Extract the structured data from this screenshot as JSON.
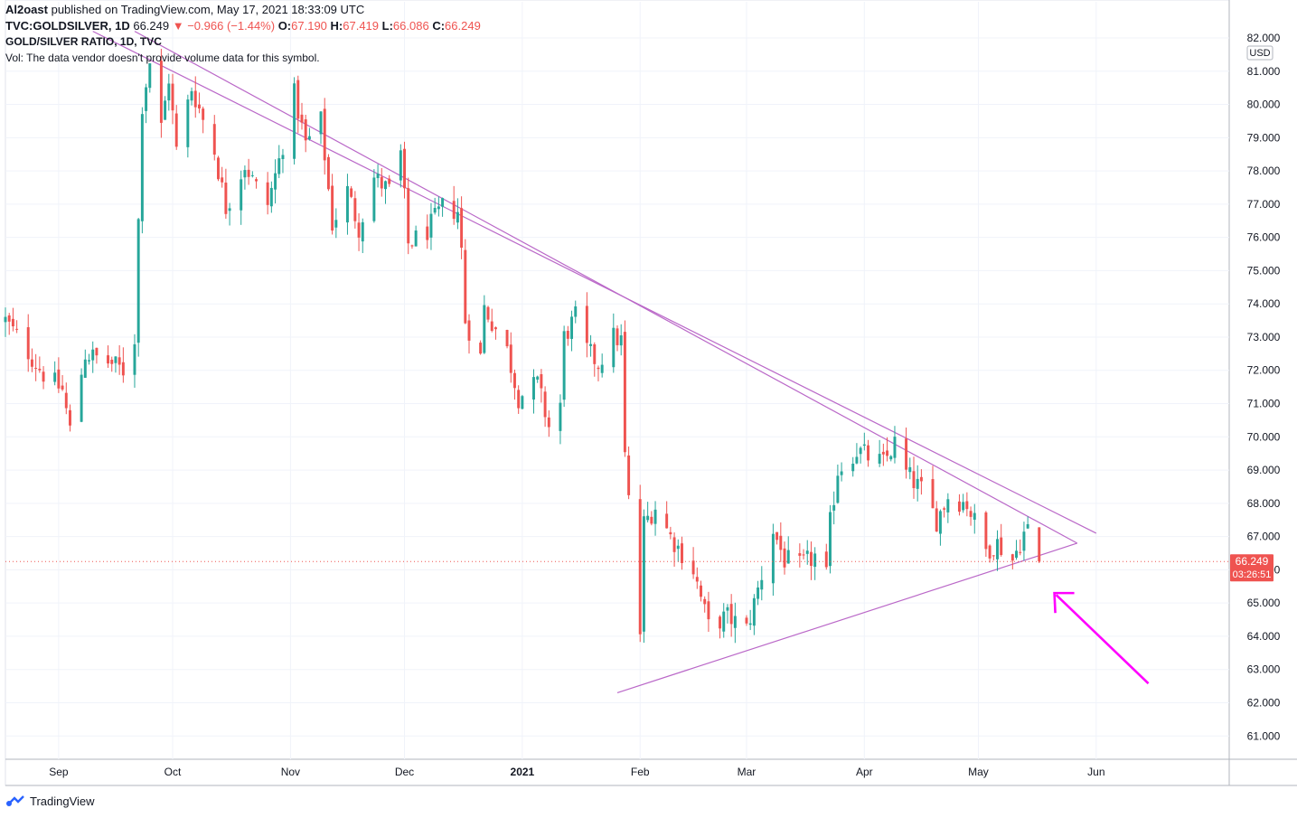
{
  "header": {
    "publisher": "Al2oast",
    "published_text": "published on TradingView.com, May 17, 2021 18:33:09 UTC",
    "symbol": "TVC:GOLDSILVER, 1D",
    "last": "66.249",
    "change": "▼ −0.966 (−1.44%)",
    "o_label": "O:",
    "o_value": "67.190",
    "h_label": "H:",
    "h_value": "67.419",
    "l_label": "L:",
    "l_value": "66.086",
    "c_label": "C:",
    "c_value": "66.249"
  },
  "chart_data": {
    "type": "candlestick",
    "title": "GOLD/SILVER RATIO, 1D, TVC",
    "note": "Vol: The data vendor doesn't provide volume data for this symbol.",
    "currency": "USD",
    "x_start": "2020-08-18",
    "x_end": "2021-07-06",
    "ylim": [
      60.3,
      82.0
    ],
    "y_ticks": [
      "82.000",
      "81.000",
      "80.000",
      "79.000",
      "78.000",
      "77.000",
      "76.000",
      "75.000",
      "74.000",
      "73.000",
      "72.000",
      "71.000",
      "70.000",
      "69.000",
      "68.000",
      "67.000",
      "66.000",
      "65.000",
      "64.000",
      "63.000",
      "62.000",
      "61.000"
    ],
    "x_ticks": [
      {
        "label": "Sep",
        "date": "2020-09-01",
        "bold": false
      },
      {
        "label": "Oct",
        "date": "2020-10-01",
        "bold": false
      },
      {
        "label": "Nov",
        "date": "2020-11-01",
        "bold": false
      },
      {
        "label": "Dec",
        "date": "2020-12-01",
        "bold": false
      },
      {
        "label": "2021",
        "date": "2021-01-01",
        "bold": true
      },
      {
        "label": "Feb",
        "date": "2021-02-01",
        "bold": false
      },
      {
        "label": "Mar",
        "date": "2021-03-01",
        "bold": false
      },
      {
        "label": "Apr",
        "date": "2021-04-01",
        "bold": false
      },
      {
        "label": "May",
        "date": "2021-05-01",
        "bold": false
      },
      {
        "label": "Jun",
        "date": "2021-06-01",
        "bold": false
      }
    ],
    "last_price": "66.249",
    "countdown": "03:26:51",
    "colors": {
      "up": "#26a69a",
      "down": "#ef5350",
      "trend": "#ba68c8",
      "arrow": "#ff00ff",
      "grid": "#f0f3fa"
    },
    "anchors": [
      {
        "date": "2020-08-18",
        "close": 73.5
      },
      {
        "date": "2020-08-28",
        "close": 71.9
      },
      {
        "date": "2020-09-02",
        "close": 71.4
      },
      {
        "date": "2020-09-04",
        "close": 70.2
      },
      {
        "date": "2020-09-08",
        "close": 72.5
      },
      {
        "date": "2020-09-15",
        "close": 72.2
      },
      {
        "date": "2020-09-18",
        "close": 72.0
      },
      {
        "date": "2020-09-21",
        "close": 73.0
      },
      {
        "date": "2020-09-23",
        "close": 80.0
      },
      {
        "date": "2020-09-25",
        "close": 81.3
      },
      {
        "date": "2020-09-28",
        "close": 79.3
      },
      {
        "date": "2020-09-30",
        "close": 80.8
      },
      {
        "date": "2020-10-02",
        "close": 78.6
      },
      {
        "date": "2020-10-06",
        "close": 80.5
      },
      {
        "date": "2020-10-12",
        "close": 78.6
      },
      {
        "date": "2020-10-15",
        "close": 76.9
      },
      {
        "date": "2020-10-20",
        "close": 78.2
      },
      {
        "date": "2020-10-23",
        "close": 77.5
      },
      {
        "date": "2020-10-26",
        "close": 77.0
      },
      {
        "date": "2020-10-29",
        "close": 78.3
      },
      {
        "date": "2020-11-02",
        "close": 80.3
      },
      {
        "date": "2020-11-05",
        "close": 78.8
      },
      {
        "date": "2020-11-09",
        "close": 79.5
      },
      {
        "date": "2020-11-12",
        "close": 76.4
      },
      {
        "date": "2020-11-16",
        "close": 77.4
      },
      {
        "date": "2020-11-19",
        "close": 76.3
      },
      {
        "date": "2020-11-23",
        "close": 77.8
      },
      {
        "date": "2020-11-27",
        "close": 77.4
      },
      {
        "date": "2020-11-30",
        "close": 78.5
      },
      {
        "date": "2020-12-02",
        "close": 75.8
      },
      {
        "date": "2020-12-07",
        "close": 76.2
      },
      {
        "date": "2020-12-11",
        "close": 76.9
      },
      {
        "date": "2020-12-15",
        "close": 76.8
      },
      {
        "date": "2020-12-16",
        "close": 75.6
      },
      {
        "date": "2020-12-17",
        "close": 73.5
      },
      {
        "date": "2020-12-21",
        "close": 72.4
      },
      {
        "date": "2020-12-22",
        "close": 73.9
      },
      {
        "date": "2020-12-28",
        "close": 72.6
      },
      {
        "date": "2020-12-31",
        "close": 71.2
      },
      {
        "date": "2021-01-05",
        "close": 71.6
      },
      {
        "date": "2021-01-08",
        "close": 70.3
      },
      {
        "date": "2021-01-11",
        "close": 71.0
      },
      {
        "date": "2021-01-12",
        "close": 73.0
      },
      {
        "date": "2021-01-15",
        "close": 73.6
      },
      {
        "date": "2021-01-18",
        "close": 72.6
      },
      {
        "date": "2021-01-21",
        "close": 72.2
      },
      {
        "date": "2021-01-25",
        "close": 73.0
      },
      {
        "date": "2021-01-27",
        "close": 72.9
      },
      {
        "date": "2021-01-28",
        "close": 69.4
      },
      {
        "date": "2021-02-01",
        "close": 64.1
      },
      {
        "date": "2021-02-02",
        "close": 67.4
      },
      {
        "date": "2021-02-05",
        "close": 67.9
      },
      {
        "date": "2021-02-09",
        "close": 67.0
      },
      {
        "date": "2021-02-15",
        "close": 66.0
      },
      {
        "date": "2021-02-19",
        "close": 64.3
      },
      {
        "date": "2021-02-24",
        "close": 64.6
      },
      {
        "date": "2021-03-01",
        "close": 64.2
      },
      {
        "date": "2021-03-04",
        "close": 65.4
      },
      {
        "date": "2021-03-08",
        "close": 67.2
      },
      {
        "date": "2021-03-11",
        "close": 66.3
      },
      {
        "date": "2021-03-15",
        "close": 66.1
      },
      {
        "date": "2021-03-19",
        "close": 66.4
      },
      {
        "date": "2021-03-22",
        "close": 65.8
      },
      {
        "date": "2021-03-23",
        "close": 67.4
      },
      {
        "date": "2021-03-25",
        "close": 69.0
      },
      {
        "date": "2021-03-30",
        "close": 69.6
      },
      {
        "date": "2021-04-02",
        "close": 69.4
      },
      {
        "date": "2021-04-06",
        "close": 69.2
      },
      {
        "date": "2021-04-09",
        "close": 69.8
      },
      {
        "date": "2021-04-12",
        "close": 68.9
      },
      {
        "date": "2021-04-16",
        "close": 68.4
      },
      {
        "date": "2021-04-20",
        "close": 67.5
      },
      {
        "date": "2021-04-23",
        "close": 68.2
      },
      {
        "date": "2021-04-28",
        "close": 68.0
      },
      {
        "date": "2021-05-03",
        "close": 66.6
      },
      {
        "date": "2021-05-06",
        "close": 66.8
      },
      {
        "date": "2021-05-10",
        "close": 66.3
      },
      {
        "date": "2021-05-13",
        "close": 67.1
      },
      {
        "date": "2021-05-14",
        "close": 67.2
      },
      {
        "date": "2021-05-17",
        "close": 66.249
      }
    ],
    "trendlines": [
      {
        "name": "resistance-outer",
        "from": {
          "date": "2020-09-10",
          "value": 82.2
        },
        "to": {
          "date": "2021-06-01",
          "value": 67.1
        }
      },
      {
        "name": "resistance-inner",
        "from": {
          "date": "2020-09-21",
          "value": 82.2
        },
        "to": {
          "date": "2021-05-27",
          "value": 66.8
        }
      },
      {
        "name": "support",
        "from": {
          "date": "2021-01-26",
          "value": 62.3
        },
        "to": {
          "date": "2021-05-27",
          "value": 66.8
        }
      }
    ]
  },
  "footer": {
    "brand": "TradingView"
  }
}
